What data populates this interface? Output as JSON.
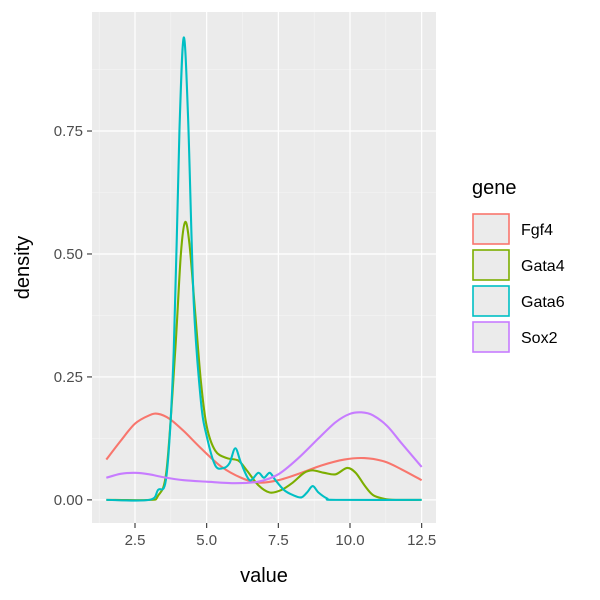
{
  "chart_data": {
    "type": "line",
    "subtype": "density",
    "title": "",
    "xlabel": "value",
    "ylabel": "density",
    "xlim": [
      1.5,
      12.5
    ],
    "ylim": [
      0,
      0.95
    ],
    "x_ticks": [
      2.5,
      5.0,
      7.5,
      10.0,
      12.5
    ],
    "x_tick_labels": [
      "2.5",
      "5.0",
      "7.5",
      "10.0",
      "12.5"
    ],
    "y_ticks": [
      0.0,
      0.25,
      0.5,
      0.75
    ],
    "y_tick_labels": [
      "0.00",
      "0.25",
      "0.50",
      "0.75"
    ],
    "grid": true,
    "panel_background": "#ebebeb",
    "legend": {
      "title": "gene",
      "position": "right"
    },
    "series": [
      {
        "name": "Fgf4",
        "color": "#f8766d",
        "points": [
          [
            1.5,
            0.082
          ],
          [
            2.0,
            0.12
          ],
          [
            2.5,
            0.155
          ],
          [
            3.0,
            0.172
          ],
          [
            3.3,
            0.175
          ],
          [
            3.7,
            0.165
          ],
          [
            4.2,
            0.14
          ],
          [
            4.8,
            0.105
          ],
          [
            5.5,
            0.068
          ],
          [
            6.2,
            0.045
          ],
          [
            6.8,
            0.035
          ],
          [
            7.5,
            0.04
          ],
          [
            8.3,
            0.055
          ],
          [
            9.0,
            0.07
          ],
          [
            9.8,
            0.082
          ],
          [
            10.5,
            0.085
          ],
          [
            11.2,
            0.078
          ],
          [
            11.8,
            0.062
          ],
          [
            12.5,
            0.04
          ]
        ]
      },
      {
        "name": "Gata4",
        "color": "#7cae00",
        "points": [
          [
            1.5,
            0.0
          ],
          [
            3.0,
            0.0
          ],
          [
            3.3,
            0.008
          ],
          [
            3.6,
            0.06
          ],
          [
            3.9,
            0.3
          ],
          [
            4.1,
            0.5
          ],
          [
            4.25,
            0.565
          ],
          [
            4.4,
            0.52
          ],
          [
            4.6,
            0.38
          ],
          [
            4.8,
            0.24
          ],
          [
            5.0,
            0.15
          ],
          [
            5.3,
            0.1
          ],
          [
            5.7,
            0.085
          ],
          [
            6.1,
            0.08
          ],
          [
            6.4,
            0.06
          ],
          [
            6.8,
            0.03
          ],
          [
            7.2,
            0.015
          ],
          [
            7.6,
            0.02
          ],
          [
            8.0,
            0.035
          ],
          [
            8.4,
            0.055
          ],
          [
            8.7,
            0.06
          ],
          [
            9.1,
            0.055
          ],
          [
            9.5,
            0.052
          ],
          [
            9.9,
            0.065
          ],
          [
            10.2,
            0.055
          ],
          [
            10.5,
            0.03
          ],
          [
            10.8,
            0.01
          ],
          [
            11.2,
            0.002
          ],
          [
            11.6,
            0.0
          ],
          [
            12.5,
            0.0
          ]
        ]
      },
      {
        "name": "Gata6",
        "color": "#00bfc4",
        "points": [
          [
            1.5,
            0.0
          ],
          [
            3.0,
            0.0
          ],
          [
            3.3,
            0.02
          ],
          [
            3.6,
            0.05
          ],
          [
            3.85,
            0.3
          ],
          [
            4.05,
            0.75
          ],
          [
            4.2,
            0.94
          ],
          [
            4.35,
            0.78
          ],
          [
            4.55,
            0.4
          ],
          [
            4.8,
            0.2
          ],
          [
            5.0,
            0.13
          ],
          [
            5.3,
            0.07
          ],
          [
            5.6,
            0.065
          ],
          [
            5.8,
            0.075
          ],
          [
            6.0,
            0.105
          ],
          [
            6.2,
            0.075
          ],
          [
            6.5,
            0.04
          ],
          [
            6.8,
            0.055
          ],
          [
            7.0,
            0.045
          ],
          [
            7.2,
            0.055
          ],
          [
            7.4,
            0.04
          ],
          [
            7.7,
            0.02
          ],
          [
            8.0,
            0.01
          ],
          [
            8.3,
            0.005
          ],
          [
            8.5,
            0.015
          ],
          [
            8.7,
            0.028
          ],
          [
            8.9,
            0.015
          ],
          [
            9.2,
            0.003
          ],
          [
            9.5,
            0.0
          ],
          [
            12.5,
            0.0
          ]
        ]
      },
      {
        "name": "Sox2",
        "color": "#c77cff",
        "points": [
          [
            1.5,
            0.045
          ],
          [
            2.0,
            0.053
          ],
          [
            2.5,
            0.055
          ],
          [
            3.0,
            0.052
          ],
          [
            3.5,
            0.046
          ],
          [
            4.2,
            0.04
          ],
          [
            5.0,
            0.037
          ],
          [
            6.0,
            0.034
          ],
          [
            6.8,
            0.037
          ],
          [
            7.5,
            0.052
          ],
          [
            8.2,
            0.085
          ],
          [
            8.9,
            0.125
          ],
          [
            9.5,
            0.158
          ],
          [
            10.0,
            0.175
          ],
          [
            10.4,
            0.178
          ],
          [
            10.8,
            0.172
          ],
          [
            11.3,
            0.15
          ],
          [
            11.8,
            0.115
          ],
          [
            12.5,
            0.067
          ]
        ]
      }
    ]
  }
}
